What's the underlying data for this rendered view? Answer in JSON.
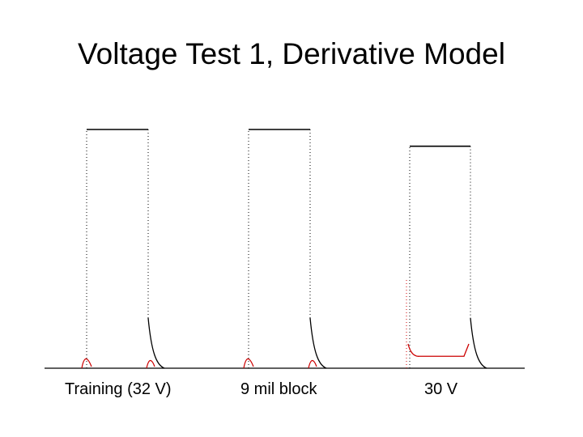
{
  "slide": {
    "title": "Voltage Test 1, Derivative Model"
  },
  "captions": [
    "Training (32 V)",
    "9 mil block",
    "30 V"
  ],
  "colors": {
    "measured": "#000000",
    "model": "#cc0000"
  },
  "chart_data": {
    "type": "line",
    "title": "Voltage Test 1, Derivative Model",
    "xlabel": "",
    "ylabel": "",
    "grid": false,
    "legend": "none",
    "panels": [
      {
        "label": "Training (32 V)",
        "pulse_level": 1.0,
        "model_residual": 0.0
      },
      {
        "label": "9 mil block",
        "pulse_level": 1.0,
        "model_residual": 0.0
      },
      {
        "label": "30 V",
        "pulse_level": 0.93,
        "model_residual": 0.05
      }
    ]
  }
}
